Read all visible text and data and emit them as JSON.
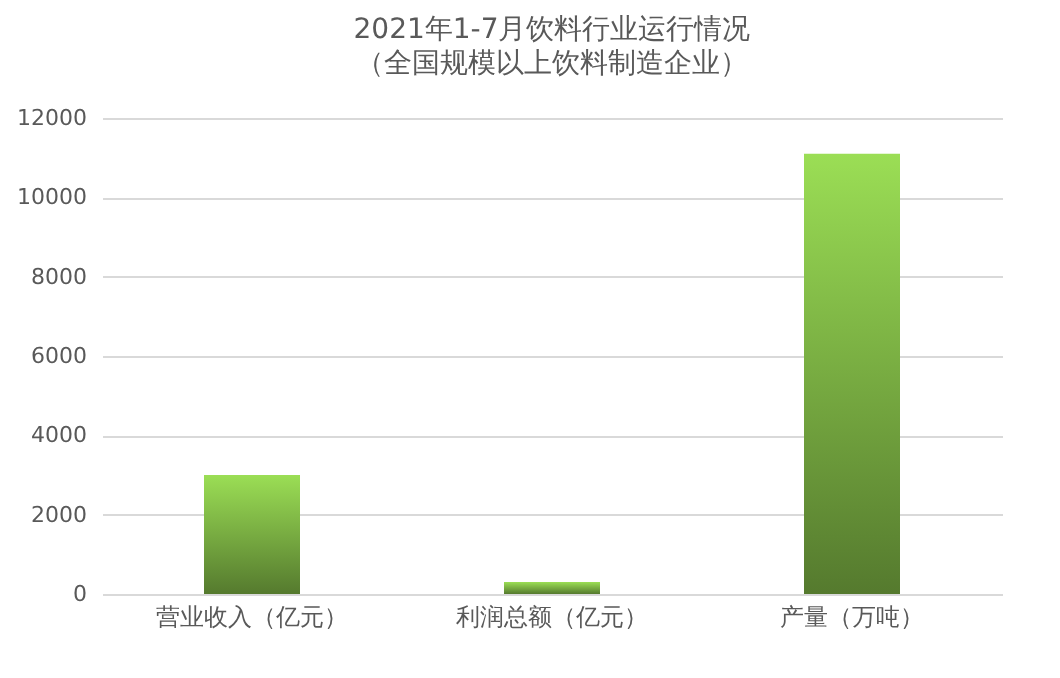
{
  "chart_data": {
    "type": "bar",
    "title": "2021年1-7月饮料行业运行情况",
    "subtitle": "（全国规模以上饮料制造企业）",
    "categories": [
      "营业收入（亿元）",
      "利润总额（亿元）",
      "产量（万吨）"
    ],
    "values": [
      3000,
      300,
      11100
    ],
    "color": "#9bde55",
    "ylim": [
      0,
      12000
    ],
    "yticks": [
      0,
      2000,
      4000,
      6000,
      8000,
      10000,
      12000
    ],
    "grid": "y"
  }
}
